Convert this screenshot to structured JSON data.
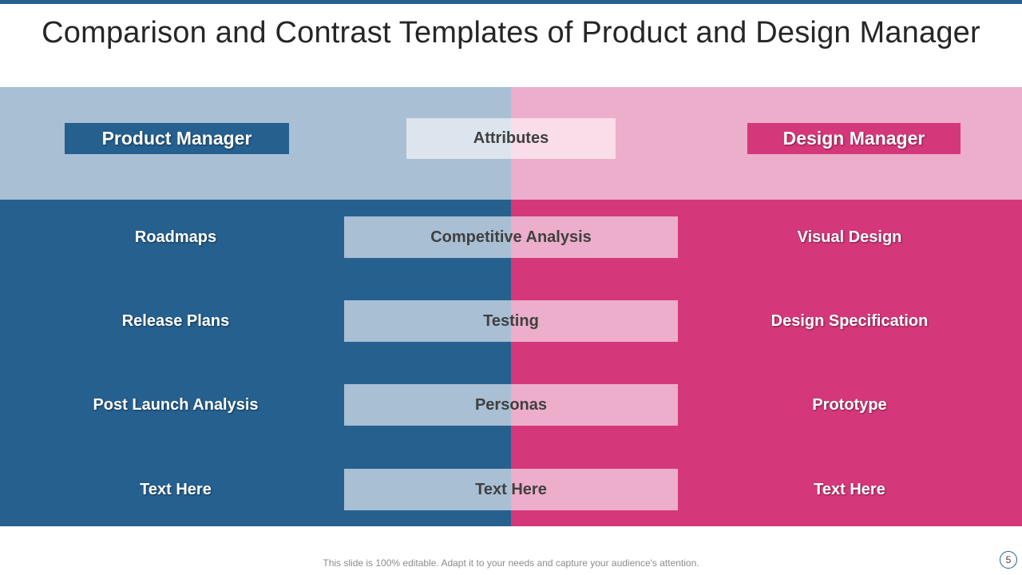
{
  "slide": {
    "title": "Comparison and Contrast Templates of Product and Design Manager",
    "footer": "This slide is 100% editable. Adapt it to your needs and capture your audience's attention.",
    "page_number": "5"
  },
  "headers": {
    "left": "Product Manager",
    "center": "Attributes",
    "right": "Design Manager"
  },
  "rows": [
    {
      "left": "Roadmaps",
      "attribute": "Competitive  Analysis",
      "right": "Visual Design"
    },
    {
      "left": "Release  Plans",
      "attribute": "Testing",
      "right": "Design Specification"
    },
    {
      "left": "Post Launch Analysis",
      "attribute": "Personas",
      "right": "Prototype"
    },
    {
      "left": "Text Here",
      "attribute": "Text Here",
      "right": "Text Here"
    }
  ],
  "colors": {
    "blue_dark": "#26608f",
    "blue_light": "#a8bfd4",
    "pink_dark": "#d5387a",
    "pink_light": "#ecaecb"
  }
}
